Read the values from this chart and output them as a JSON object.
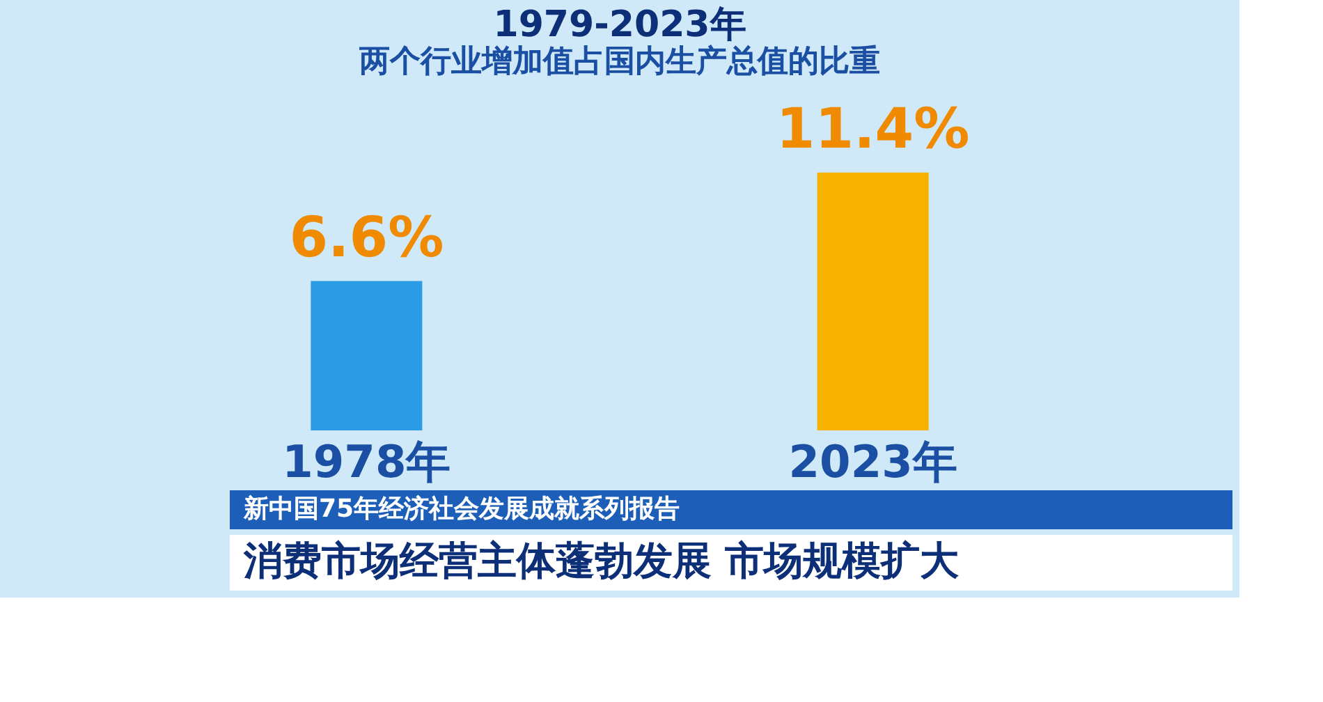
{
  "chart_data": {
    "type": "bar",
    "title": "1979-2023年",
    "subtitle": "两个行业增加值占国内生产总值的比重",
    "categories": [
      "1978年",
      "2023年"
    ],
    "values": [
      6.6,
      11.4
    ],
    "colors": [
      "#2b9be6",
      "#f7b200"
    ],
    "value_labels": [
      "6.6%",
      "11.4%"
    ],
    "annotations": [
      "新中国75年经济社会发展成就系列报告",
      "消费市场经营主体蓬勃发展 市场规模扩大"
    ],
    "grid": false
  }
}
